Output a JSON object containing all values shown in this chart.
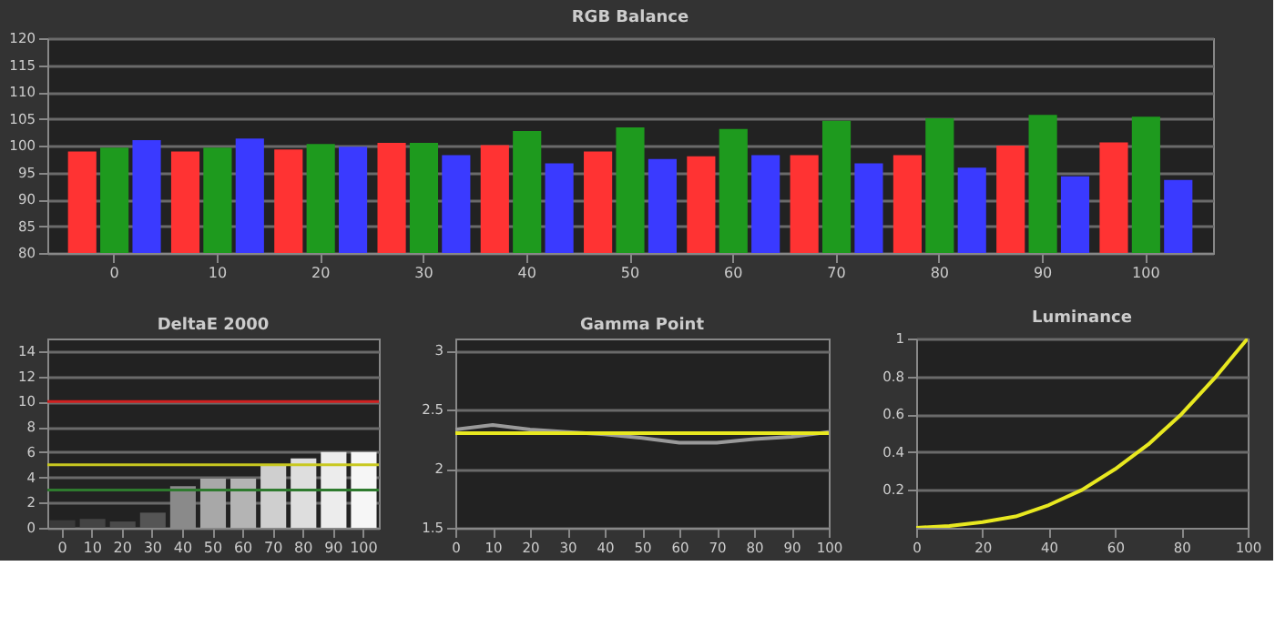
{
  "chart_data": [
    {
      "type": "bar",
      "title": "RGB Balance",
      "categories": [
        "0",
        "10",
        "20",
        "30",
        "40",
        "50",
        "60",
        "70",
        "80",
        "90",
        "100"
      ],
      "ylim": [
        80,
        120
      ],
      "yticks": [
        80,
        85,
        90,
        95,
        100,
        105,
        110,
        115,
        120
      ],
      "grid": "y",
      "series": [
        {
          "color": "#ff3333",
          "values": [
            98.9,
            98.9,
            99.3,
            100.5,
            100.1,
            98.9,
            98.0,
            98.2,
            98.2,
            100.0,
            100.6
          ]
        },
        {
          "color": "#1e9a1e",
          "values": [
            99.6,
            99.6,
            100.3,
            100.5,
            102.7,
            103.4,
            103.1,
            104.6,
            105.1,
            105.7,
            105.4
          ]
        },
        {
          "color": "#3a3aff",
          "values": [
            101.0,
            101.3,
            99.8,
            98.2,
            96.7,
            97.5,
            98.2,
            96.7,
            95.9,
            94.3,
            93.6
          ]
        }
      ]
    },
    {
      "type": "bar",
      "title": "DeltaE 2000",
      "categories": [
        "0",
        "10",
        "20",
        "30",
        "40",
        "50",
        "60",
        "70",
        "80",
        "90",
        "100"
      ],
      "ylim": [
        0,
        15
      ],
      "yticks": [
        0,
        2,
        4,
        6,
        8,
        10,
        12,
        14
      ],
      "grid": "y",
      "values": [
        0.6,
        0.7,
        0.5,
        1.2,
        3.3,
        3.9,
        3.9,
        5.0,
        5.5,
        6.0,
        6.0
      ],
      "colors": [
        "#3a3a3a",
        "#444444",
        "#4a4a4a",
        "#555555",
        "#8a8a8a",
        "#a8a8a8",
        "#b4b4b4",
        "#cfcfcf",
        "#dedede",
        "#ececec",
        "#f6f6f6"
      ],
      "ref_lines": [
        {
          "axis": "y",
          "value": 10,
          "color": "#d02020"
        },
        {
          "axis": "y",
          "value": 5,
          "color": "#c8c820"
        },
        {
          "axis": "y",
          "value": 3,
          "color": "#2e7a2e"
        }
      ]
    },
    {
      "type": "line",
      "title": "Gamma Point",
      "x": [
        0,
        10,
        20,
        30,
        40,
        50,
        60,
        70,
        80,
        90,
        100
      ],
      "xlim": [
        0,
        100
      ],
      "xticks": [
        0,
        10,
        20,
        30,
        40,
        50,
        60,
        70,
        80,
        90,
        100
      ],
      "ylim": [
        1.5,
        3.1
      ],
      "yticks": [
        1.5,
        2,
        2.5,
        3
      ],
      "grid": "y",
      "series": [
        {
          "color": "#9a9a9a",
          "values": [
            2.33,
            2.37,
            2.33,
            2.31,
            2.29,
            2.26,
            2.22,
            2.22,
            2.25,
            2.27,
            2.31
          ]
        },
        {
          "color": "#e8e820",
          "values": [
            2.3,
            2.3,
            2.3,
            2.3,
            2.3,
            2.3,
            2.3,
            2.3,
            2.3,
            2.3,
            2.3
          ]
        }
      ]
    },
    {
      "type": "line",
      "title": "Luminance",
      "x": [
        0,
        10,
        20,
        30,
        40,
        50,
        60,
        70,
        80,
        90,
        100
      ],
      "xlim": [
        0,
        100
      ],
      "xticks": [
        0,
        20,
        40,
        60,
        80,
        100
      ],
      "ylim": [
        0,
        1
      ],
      "yticks": [
        0.2,
        0.4,
        0.6,
        0.8,
        1
      ],
      "grid": "y",
      "series": [
        {
          "color": "#e8e820",
          "values": [
            0,
            0.01,
            0.03,
            0.06,
            0.12,
            0.2,
            0.31,
            0.44,
            0.6,
            0.79,
            1
          ]
        }
      ]
    }
  ]
}
